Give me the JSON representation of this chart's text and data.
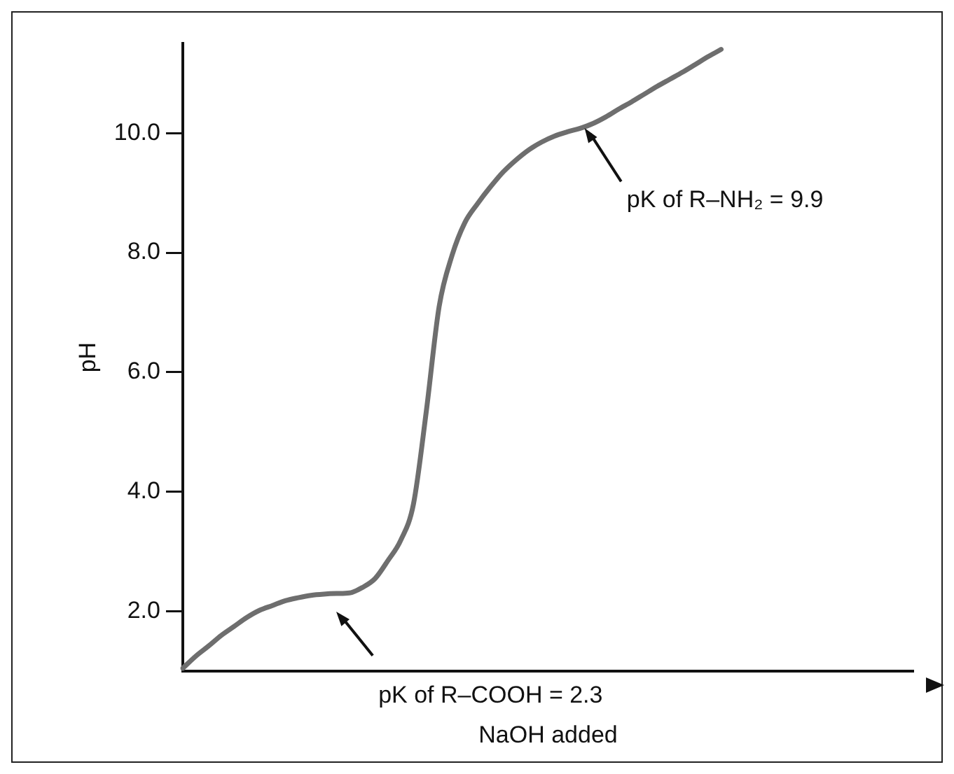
{
  "chart_data": {
    "type": "line",
    "xlabel": "NaOH added",
    "ylabel": "pH",
    "categories": [
      null,
      null,
      null,
      null,
      null,
      null,
      null,
      null,
      null,
      null,
      null,
      null,
      null,
      null,
      null,
      null,
      null,
      null,
      null,
      null,
      null,
      null,
      null,
      null,
      null,
      null,
      null,
      null,
      null,
      null,
      null,
      null,
      null,
      null,
      null,
      null,
      null,
      null,
      null,
      null,
      null,
      null,
      null,
      null,
      null,
      null,
      null,
      null,
      null,
      null,
      null,
      null,
      null,
      null,
      null,
      null,
      null,
      null
    ],
    "series": [
      {
        "color": "#6e6e6e",
        "values": [
          1.05,
          1.25,
          1.42,
          1.6,
          1.75,
          1.9,
          2.02,
          2.1,
          2.18,
          2.23,
          2.27,
          2.29,
          2.3,
          2.31,
          2.4,
          2.55,
          2.85,
          3.19,
          3.8,
          5.35,
          7.1,
          7.95,
          8.5,
          8.82,
          9.1,
          9.35,
          9.55,
          9.72,
          9.85,
          9.95,
          10.02,
          10.08,
          10.16,
          10.27,
          10.4,
          10.52,
          10.65,
          10.78,
          10.9,
          11.02,
          11.15,
          11.28,
          11.4,
          null,
          null,
          null,
          null,
          null,
          null,
          null,
          null,
          null,
          null,
          null,
          null,
          null,
          null,
          null
        ]
      }
    ],
    "ylim": [
      1.0,
      11.5
    ],
    "yticks": [
      {
        "value": 2,
        "label": "2.0"
      },
      {
        "value": 4,
        "label": "4.0"
      },
      {
        "value": 6,
        "label": "6.0"
      },
      {
        "value": 8,
        "label": "8.0"
      },
      {
        "value": 10,
        "label": "10.0"
      }
    ],
    "tick_labels": "y",
    "grid": false,
    "legend": false,
    "marker": "none",
    "line_style": "solid",
    "annotations": [
      "pK of R–COOH = 2.3",
      "pK of R–NH₂ = 9.9"
    ]
  }
}
